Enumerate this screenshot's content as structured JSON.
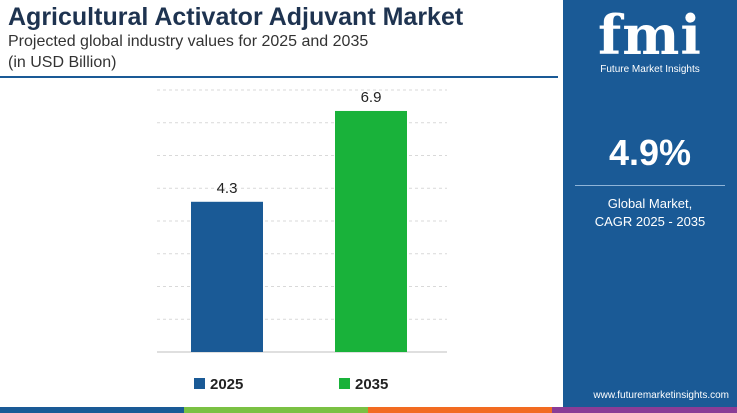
{
  "header": {
    "title": "Agricultural Activator Adjuvant Market",
    "subtitle_line1": "Projected global industry values for 2025 and 2035",
    "subtitle_line2": "(in USD Billion)"
  },
  "chart_data": {
    "type": "bar",
    "categories": [
      "2025",
      "2035"
    ],
    "values": [
      4.3,
      6.9
    ],
    "value_labels": [
      "4.3",
      "6.9"
    ],
    "colors": [
      "#1a5a96",
      "#19b23a"
    ],
    "ylim": [
      0,
      7.5
    ],
    "grid": true,
    "legend_position": "bottom",
    "legend": [
      {
        "label": "2025",
        "color": "#1a5a96"
      },
      {
        "label": "2035",
        "color": "#19b23a"
      }
    ]
  },
  "panel": {
    "logo_letters": "fmi",
    "logo_caption": "Future Market Insights",
    "cagr_value": "4.9%",
    "cagr_label_line1": "Global Market,",
    "cagr_label_line2": "CAGR 2025 - 2035",
    "website": "www.futuremarketinsights.com"
  },
  "colors": {
    "panel_bg": "#1a5a96",
    "title": "#1e3350",
    "bar_2025": "#1a5a96",
    "bar_2035": "#19b23a",
    "stripe": [
      "#1a5a96",
      "#7ac143",
      "#f26b21",
      "#8a3c96"
    ]
  }
}
